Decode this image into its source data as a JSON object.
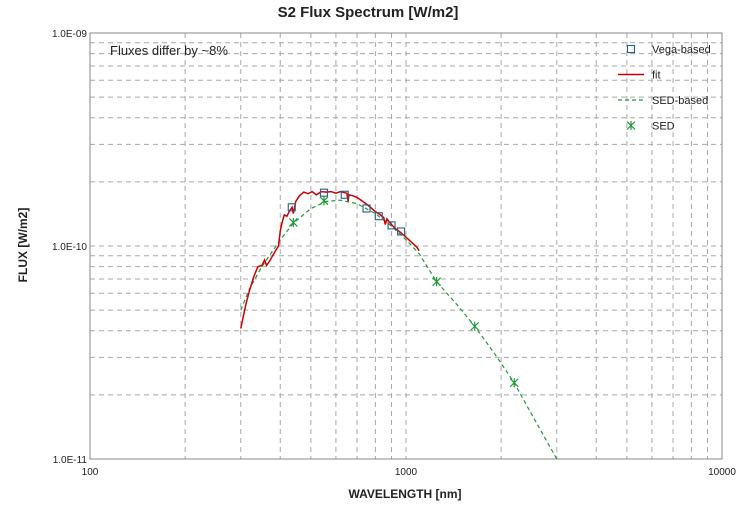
{
  "chart_data": {
    "type": "line",
    "title": "S2 Flux Spectrum [W/m2]",
    "xlabel": "WAVELENGTH  [nm]",
    "ylabel": "FLUX [W/m2]",
    "x_scale": "log",
    "y_scale": "log",
    "xlim": [
      100,
      10000
    ],
    "ylim": [
      1e-11,
      1e-09
    ],
    "grid": true,
    "legend_position": "top-right",
    "x_ticks": [
      {
        "value": 100,
        "label": "100"
      },
      {
        "value": 1000,
        "label": "1000"
      },
      {
        "value": 10000,
        "label": "10000"
      }
    ],
    "y_ticks": [
      {
        "value": 1e-09,
        "label": "1.0E-09"
      },
      {
        "value": 1e-10,
        "label": "1.0E-10"
      },
      {
        "value": 1e-11,
        "label": "1.0E-11"
      }
    ],
    "annotation": "Fluxes differ by ~8%",
    "series": [
      {
        "name": "Vega-based",
        "kind": "marker-square",
        "color": "#2e5c8a",
        "points": [
          [
            435,
            1.52e-10
          ],
          [
            550,
            1.78e-10
          ],
          [
            640,
            1.74e-10
          ],
          [
            750,
            1.5e-10
          ],
          [
            820,
            1.38e-10
          ],
          [
            900,
            1.25e-10
          ],
          [
            965,
            1.17e-10
          ]
        ]
      },
      {
        "name": "fit",
        "kind": "line",
        "color": "#cc0000",
        "points": [
          [
            300,
            4.1e-11
          ],
          [
            305,
            4.6e-11
          ],
          [
            312,
            5.4e-11
          ],
          [
            320,
            6.2e-11
          ],
          [
            330,
            7.2e-11
          ],
          [
            340,
            8e-11
          ],
          [
            350,
            8.1e-11
          ],
          [
            357,
            8.6e-11
          ],
          [
            362,
            8.1e-11
          ],
          [
            370,
            8.5e-11
          ],
          [
            380,
            9.1e-11
          ],
          [
            388,
            9.6e-11
          ],
          [
            395,
            1e-10
          ],
          [
            400,
            1.18e-10
          ],
          [
            406,
            1.3e-10
          ],
          [
            412,
            1.4e-10
          ],
          [
            420,
            1.38e-10
          ],
          [
            428,
            1.46e-10
          ],
          [
            436,
            1.52e-10
          ],
          [
            440,
            1.42e-10
          ],
          [
            448,
            1.62e-10
          ],
          [
            460,
            1.72e-10
          ],
          [
            475,
            1.79e-10
          ],
          [
            490,
            1.76e-10
          ],
          [
            505,
            1.8e-10
          ],
          [
            520,
            1.74e-10
          ],
          [
            540,
            1.8e-10
          ],
          [
            560,
            1.79e-10
          ],
          [
            580,
            1.8e-10
          ],
          [
            600,
            1.77e-10
          ],
          [
            620,
            1.8e-10
          ],
          [
            650,
            1.77e-10
          ],
          [
            656,
            1.62e-10
          ],
          [
            660,
            1.74e-10
          ],
          [
            680,
            1.72e-10
          ],
          [
            700,
            1.69e-10
          ],
          [
            730,
            1.62e-10
          ],
          [
            760,
            1.55e-10
          ],
          [
            800,
            1.45e-10
          ],
          [
            830,
            1.4e-10
          ],
          [
            850,
            1.36e-10
          ],
          [
            860,
            1.26e-10
          ],
          [
            870,
            1.34e-10
          ],
          [
            900,
            1.26e-10
          ],
          [
            930,
            1.2e-10
          ],
          [
            960,
            1.16e-10
          ],
          [
            1000,
            1.1e-10
          ],
          [
            1050,
            1.03e-10
          ],
          [
            1080,
            9.9e-11
          ],
          [
            1100,
            9.5e-11
          ]
        ]
      },
      {
        "name": "SED-based",
        "kind": "dashed-line",
        "color": "#1f9a3a",
        "points": [
          [
            300,
            5e-11
          ],
          [
            320,
            6.3e-11
          ],
          [
            350,
            8e-11
          ],
          [
            400,
            1.07e-10
          ],
          [
            440,
            1.28e-10
          ],
          [
            500,
            1.5e-10
          ],
          [
            560,
            1.62e-10
          ],
          [
            620,
            1.64e-10
          ],
          [
            700,
            1.58e-10
          ],
          [
            800,
            1.42e-10
          ],
          [
            900,
            1.24e-10
          ],
          [
            1000,
            1.07e-10
          ],
          [
            1100,
            9.2e-11
          ],
          [
            1250,
            6.8e-11
          ],
          [
            1450,
            5.3e-11
          ],
          [
            1650,
            4.2e-11
          ],
          [
            1900,
            3.15e-11
          ],
          [
            2200,
            2.28e-11
          ],
          [
            2500,
            1.62e-11
          ],
          [
            2800,
            1.2e-11
          ],
          [
            3000,
            1e-11
          ]
        ]
      },
      {
        "name": "SED",
        "kind": "marker-asterisk",
        "color": "#1f9a3a",
        "points": [
          [
            440,
            1.29e-10
          ],
          [
            550,
            1.63e-10
          ],
          [
            1250,
            6.8e-11
          ],
          [
            1650,
            4.2e-11
          ],
          [
            2200,
            2.28e-11
          ]
        ]
      }
    ]
  }
}
